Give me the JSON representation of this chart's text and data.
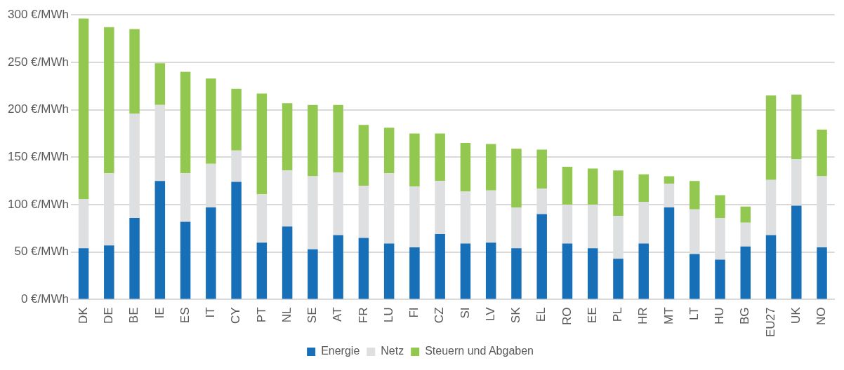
{
  "chart_data": {
    "type": "bar",
    "stacked": true,
    "categories": [
      "DK",
      "DE",
      "BE",
      "IE",
      "ES",
      "IT",
      "CY",
      "PT",
      "NL",
      "SE",
      "AT",
      "FR",
      "LU",
      "FI",
      "CZ",
      "SI",
      "LV",
      "SK",
      "EL",
      "RO",
      "EE",
      "PL",
      "HR",
      "MT",
      "LT",
      "HU",
      "BG",
      "EU27",
      "UK",
      "NO"
    ],
    "series": [
      {
        "name": "Energie",
        "color": "#176fb7",
        "values": [
          54,
          57,
          86,
          125,
          82,
          97,
          124,
          60,
          77,
          53,
          68,
          65,
          59,
          55,
          69,
          59,
          60,
          54,
          90,
          59,
          54,
          43,
          59,
          97,
          48,
          42,
          56,
          68,
          99,
          55
        ]
      },
      {
        "name": "Netz",
        "color": "#dedfe0",
        "values": [
          52,
          76,
          110,
          80,
          51,
          46,
          33,
          51,
          59,
          77,
          66,
          55,
          74,
          64,
          56,
          55,
          55,
          43,
          27,
          41,
          46,
          45,
          44,
          25,
          47,
          44,
          25,
          58,
          49,
          75
        ]
      },
      {
        "name": "Steuern und Abgaben",
        "color": "#92c84f",
        "values": [
          190,
          154,
          89,
          44,
          107,
          90,
          65,
          106,
          71,
          75,
          71,
          64,
          48,
          56,
          50,
          51,
          49,
          62,
          41,
          40,
          38,
          48,
          29,
          8,
          30,
          24,
          17,
          89,
          68,
          49
        ]
      }
    ],
    "ylim": [
      0,
      300
    ],
    "yticks": [
      {
        "value": 0,
        "label": "0 €/MWh"
      },
      {
        "value": 50,
        "label": "50 €/MWh"
      },
      {
        "value": 100,
        "label": "100 €/MWh"
      },
      {
        "value": 150,
        "label": "150 €/MWh"
      },
      {
        "value": 200,
        "label": "200 €/MWh"
      },
      {
        "value": 250,
        "label": "250 €/MWh"
      },
      {
        "value": 300,
        "label": "300 €/MWh"
      }
    ],
    "grid": "y",
    "legend": "bottom"
  }
}
